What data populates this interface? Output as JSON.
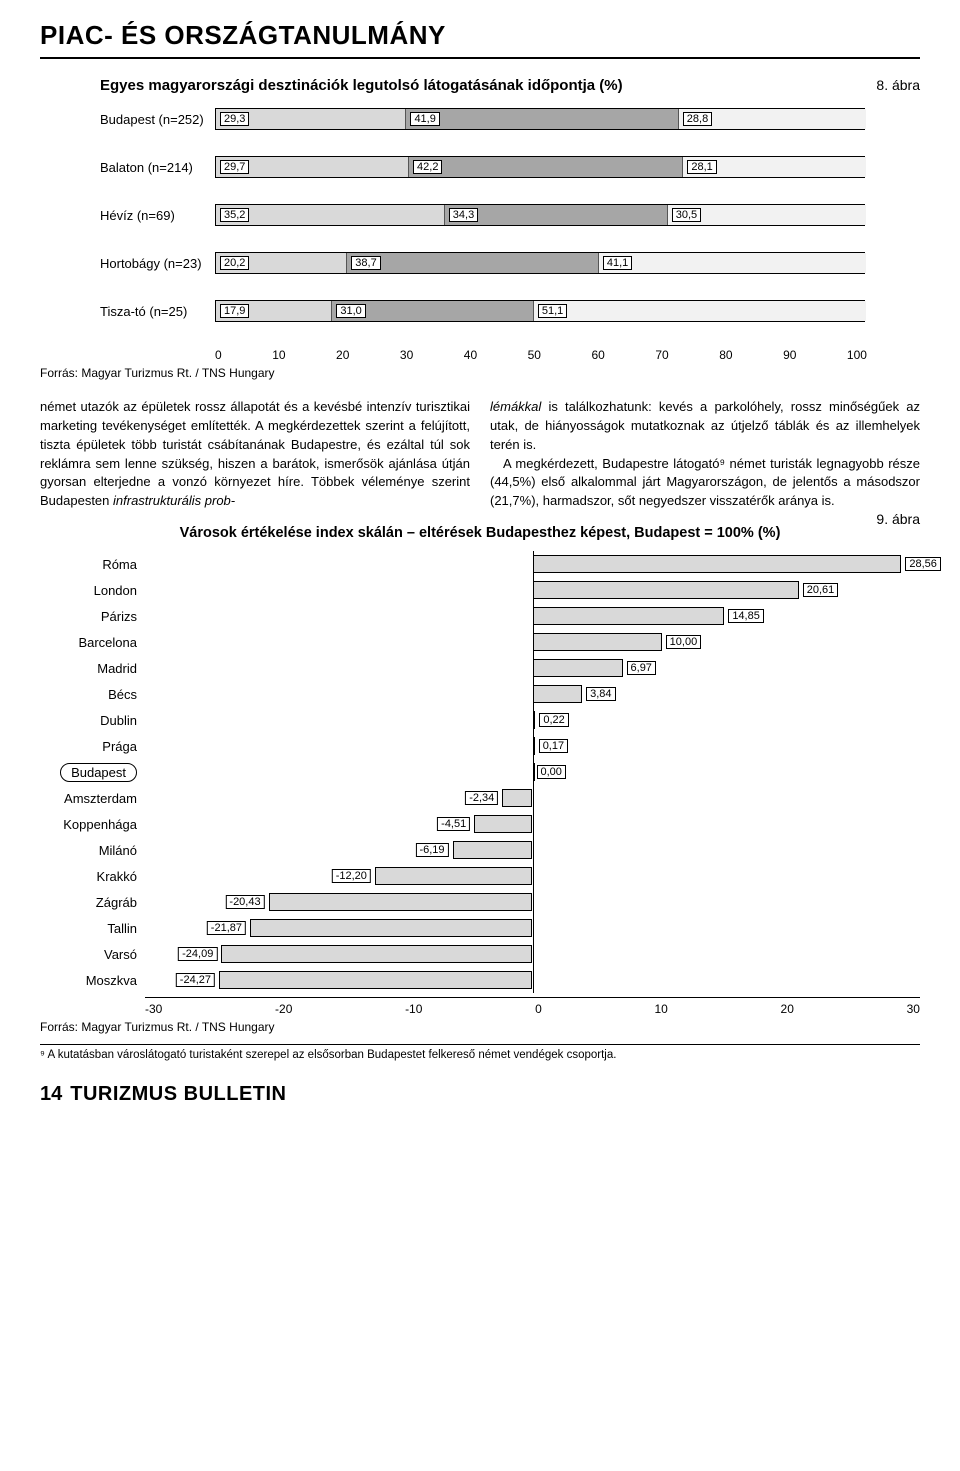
{
  "section_tag": "PIAC- ÉS ORSZÁGTANULMÁNY",
  "fig8": {
    "title": "Egyes magyarországi desztinációk legutolsó látogatásának időpontja (%)",
    "num": "8. ábra",
    "colors": [
      "#d9d9d9",
      "#a6a6a6",
      "#f2f2f2"
    ],
    "rows": [
      {
        "label": "Budapest (n=252)",
        "v": [
          29.3,
          41.9,
          28.8
        ]
      },
      {
        "label": "Balaton (n=214)",
        "v": [
          29.7,
          42.2,
          28.1
        ]
      },
      {
        "label": "Hévíz (n=69)",
        "v": [
          35.2,
          34.3,
          30.5
        ]
      },
      {
        "label": "Hortobágy (n=23)",
        "v": [
          20.2,
          38.7,
          41.1
        ]
      },
      {
        "label": "Tisza-tó (n=25)",
        "v": [
          17.9,
          31.0,
          51.1
        ]
      }
    ],
    "xticks": [
      0,
      10,
      20,
      30,
      40,
      50,
      60,
      70,
      80,
      90,
      100
    ],
    "src": "Forrás: Magyar Turizmus Rt. / TNS Hungary"
  },
  "body_left": "német utazók az épületek rossz állapotát és a kevésbé intenzív turisztikai marketing tevékenységet említették. A megkérdezettek szerint a felújított, tiszta épületek több turistát csábítanának Budapestre, és ezáltal túl sok reklámra sem lenne szükség, hiszen a barátok, ismerősök ajánlása útján gyorsan elterjedne a vonzó környezet híre. Többek véleménye szerint Budapesten infrastrukturális prob-",
  "body_right": "lémákkal is találkozhatunk: kevés a parkolóhely, rossz minőségűek az utak, de hiányosságok mutatkoznak az útjelző táblák és az illemhelyek terén is.\n A megkérdezett, Budapestre látogató⁹ német turisták legnagyobb része (44,5%) első alkalommal járt Magyarországon, de jelentős a másodszor (21,7%), harmadszor, sőt negyedszer visszatérők aránya is.",
  "fig9": {
    "title": "Városok értékelése index skálán – eltérések Budapesthez képest, Budapest = 100% (%)",
    "num": "9. ábra",
    "bar_color": "#d9d9d9",
    "xrange": [
      -30,
      30
    ],
    "xticks": [
      -30,
      -20,
      -10,
      0,
      10,
      20,
      30
    ],
    "rows": [
      {
        "label": "Róma",
        "v": 28.56
      },
      {
        "label": "London",
        "v": 20.61
      },
      {
        "label": "Párizs",
        "v": 14.85
      },
      {
        "label": "Barcelona",
        "v": 10.0
      },
      {
        "label": "Madrid",
        "v": 6.97
      },
      {
        "label": "Bécs",
        "v": 3.84
      },
      {
        "label": "Dublin",
        "v": 0.22
      },
      {
        "label": "Prága",
        "v": 0.17
      },
      {
        "label": "Budapest",
        "v": 0.0,
        "pill": true
      },
      {
        "label": "Amszterdam",
        "v": -2.34
      },
      {
        "label": "Koppenhága",
        "v": -4.51
      },
      {
        "label": "Milánó",
        "v": -6.19
      },
      {
        "label": "Krakkó",
        "v": -12.2
      },
      {
        "label": "Zágráb",
        "v": -20.43
      },
      {
        "label": "Tallin",
        "v": -21.87
      },
      {
        "label": "Varsó",
        "v": -24.09
      },
      {
        "label": "Moszkva",
        "v": -24.27
      }
    ],
    "src": "Forrás: Magyar Turizmus Rt. / TNS Hungary"
  },
  "footnote": "⁹ A kutatásban városlátogató turistaként szerepel az elsősorban Budapestet felkereső német vendégek csoportja.",
  "pagenum": "14",
  "journal": "TURIZMUS BULLETIN"
}
